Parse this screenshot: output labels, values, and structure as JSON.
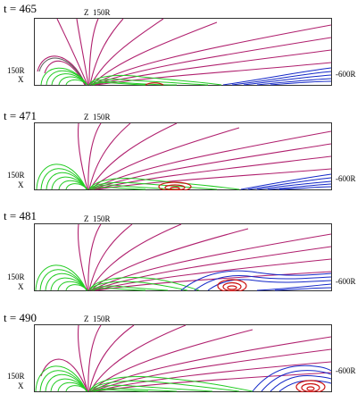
{
  "panels": [
    {
      "time_label": "t = 465",
      "z_label": "Z",
      "z_scale": "150R",
      "x_scale": "150R",
      "x_label": "X",
      "right_label": "-600R"
    },
    {
      "time_label": "t = 471",
      "z_label": "Z",
      "z_scale": "150R",
      "x_scale": "150R",
      "x_label": "X",
      "right_label": "-600R"
    },
    {
      "time_label": "t = 481",
      "z_label": "Z",
      "z_scale": "150R",
      "x_scale": "150R",
      "x_label": "X",
      "right_label": "-600R"
    },
    {
      "time_label": "t = 490",
      "z_label": "Z",
      "z_scale": "150R",
      "x_scale": "150R",
      "x_label": "X",
      "right_label": "-600R"
    }
  ],
  "colors": {
    "open_lines": "#b0206e",
    "closed_lines": "#22cc22",
    "plasmoid_red": "#cc1111",
    "tail_blue": "#1428c8",
    "frame": "#000000"
  }
}
